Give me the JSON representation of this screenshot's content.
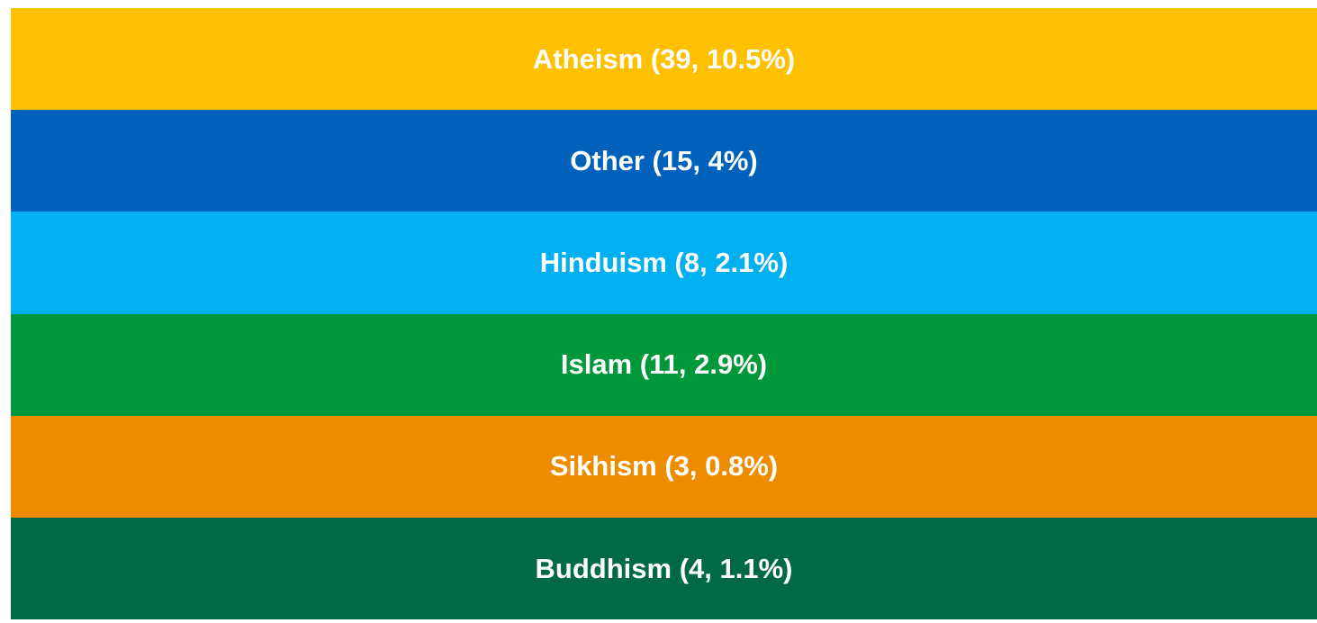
{
  "bands": [
    {
      "label": "Atheism (39, 10.5%)",
      "color": "#FFC000"
    },
    {
      "label": "Other (15, 4%)",
      "color": "#0061BB"
    },
    {
      "label": "Hinduism (8, 2.1%)",
      "color": "#00B0F0"
    },
    {
      "label": "Islam (11, 2.9%)",
      "color": "#00983A"
    },
    {
      "label": "Sikhism (3, 0.8%)",
      "color": "#EE8C00"
    },
    {
      "label": "Buddhism (4, 1.1%)",
      "color": "#006A46"
    }
  ]
}
